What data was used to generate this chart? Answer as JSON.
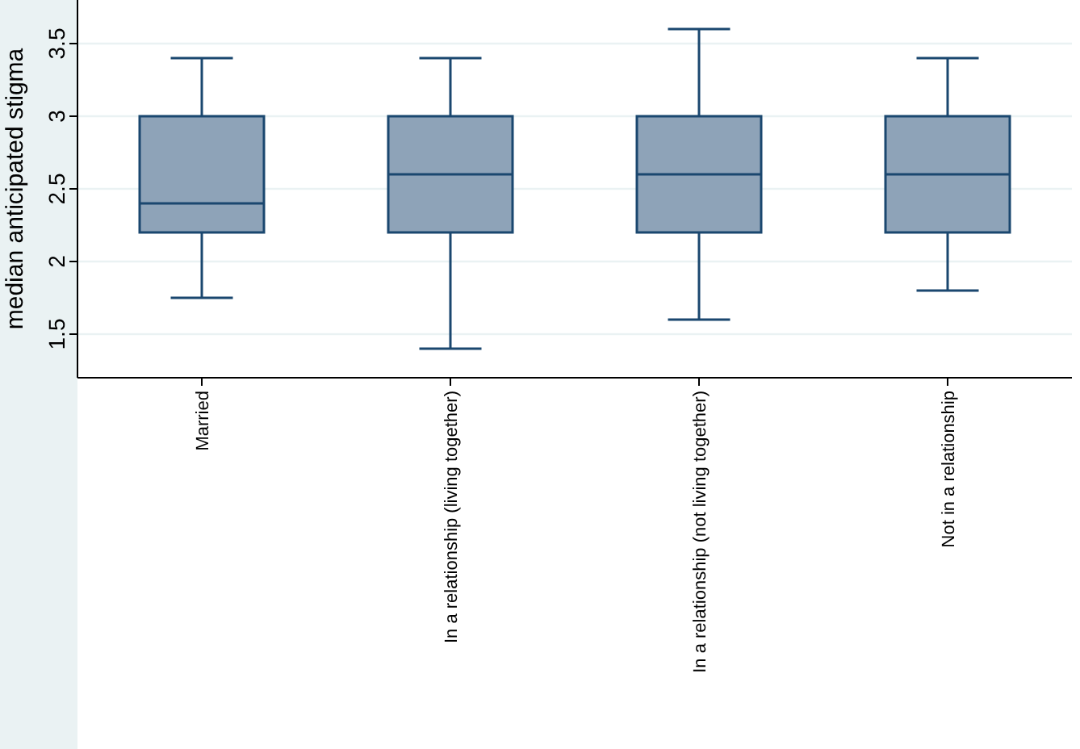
{
  "chart_data": {
    "type": "box",
    "ylabel": "median anticipated stigma",
    "categories": [
      "Married",
      "In a relationship (living together)",
      "In a relationship (not living together)",
      "Not in a relationship"
    ],
    "boxes": [
      {
        "low": 1.75,
        "q1": 2.2,
        "median": 2.4,
        "q3": 3,
        "high": 3.4
      },
      {
        "low": 1.4,
        "q1": 2.2,
        "median": 2.6,
        "q3": 3,
        "high": 3.4
      },
      {
        "low": 1.6,
        "q1": 2.2,
        "median": 2.6,
        "q3": 3,
        "high": 3.6
      },
      {
        "low": 1.8,
        "q1": 2.2,
        "median": 2.6,
        "q3": 3,
        "high": 3.4
      }
    ],
    "color": "#8ea3b8",
    "ylim": [
      1.2,
      3.8
    ],
    "yticks": [
      1.5,
      2,
      2.5,
      3,
      3.5
    ],
    "grid": "y"
  }
}
